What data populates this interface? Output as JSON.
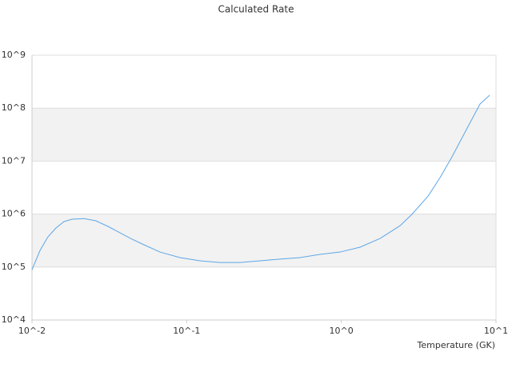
{
  "chart_data": {
    "type": "line",
    "title": "Calculated Rate",
    "x_label": "Temperature (GK)",
    "x": [
      0.01,
      0.01127,
      0.01268,
      0.01429,
      0.0161,
      0.01815,
      0.0217,
      0.0259,
      0.031,
      0.0371,
      0.0443,
      0.053,
      0.0673,
      0.0906,
      0.122,
      0.164,
      0.221,
      0.298,
      0.402,
      0.541,
      0.728,
      0.981,
      1.32,
      1.78,
      2.4,
      2.87,
      3.64,
      4.35,
      5.2,
      6.6,
      7.89,
      9.1
    ],
    "series": [
      {
        "color": "#5ea6e6",
        "values": [
          89000,
          206000,
          372000,
          546000,
          721000,
          800000,
          820000,
          746000,
          585000,
          443000,
          336000,
          263000,
          192000,
          151000,
          131000,
          122000,
          122000,
          131000,
          141000,
          151000,
          173000,
          192000,
          237000,
          347000,
          605000,
          1000000,
          2190000,
          4890000,
          12100000,
          45300000,
          120000000,
          176000000
        ]
      }
    ],
    "xscale": "log",
    "yscale": "log",
    "xlim": [
      0.01,
      10
    ],
    "ylim": [
      10000,
      1000000000
    ],
    "xticks": [
      {
        "value": 0.01,
        "label": "10^-2"
      },
      {
        "value": 0.1,
        "label": "10^-1"
      },
      {
        "value": 1,
        "label": "10^0"
      },
      {
        "value": 10,
        "label": "10^1"
      }
    ],
    "yticks": [
      {
        "value": 10000,
        "label": "10^4"
      },
      {
        "value": 100000,
        "label": "10^5"
      },
      {
        "value": 1000000,
        "label": "10^6"
      },
      {
        "value": 10000000,
        "label": "10^7"
      },
      {
        "value": 100000000,
        "label": "10^8"
      },
      {
        "value": 1000000000,
        "label": "10^9"
      }
    ],
    "grid": true,
    "band_color": "#f2f2f2"
  }
}
